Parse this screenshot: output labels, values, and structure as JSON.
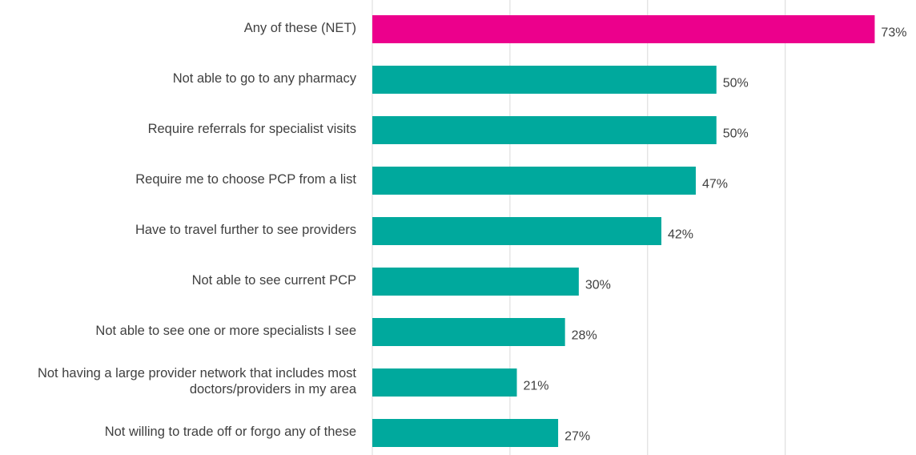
{
  "chart_data": {
    "type": "bar",
    "orientation": "horizontal",
    "categories": [
      "Any of these (NET)",
      "Not able to go to any pharmacy",
      "Require referrals for specialist visits",
      "Require me to choose PCP from a list",
      "Have to travel further to see providers",
      "Not able to see current PCP",
      "Not able to see one or more specialists I see",
      "Not having a large provider network that includes most doctors/providers in my area",
      "Not willing to trade off or forgo any of these"
    ],
    "values": [
      73,
      50,
      50,
      47,
      42,
      30,
      28,
      21,
      27
    ],
    "value_labels": [
      "73%",
      "50%",
      "50%",
      "47%",
      "42%",
      "30%",
      "28%",
      "21%",
      "27%"
    ],
    "colors": [
      "#ec008c",
      "#00a99d",
      "#00a99d",
      "#00a99d",
      "#00a99d",
      "#00a99d",
      "#00a99d",
      "#00a99d",
      "#00a99d"
    ],
    "xlim": [
      0,
      79
    ],
    "xticks": [
      0,
      20,
      40,
      60
    ],
    "grid": true
  }
}
